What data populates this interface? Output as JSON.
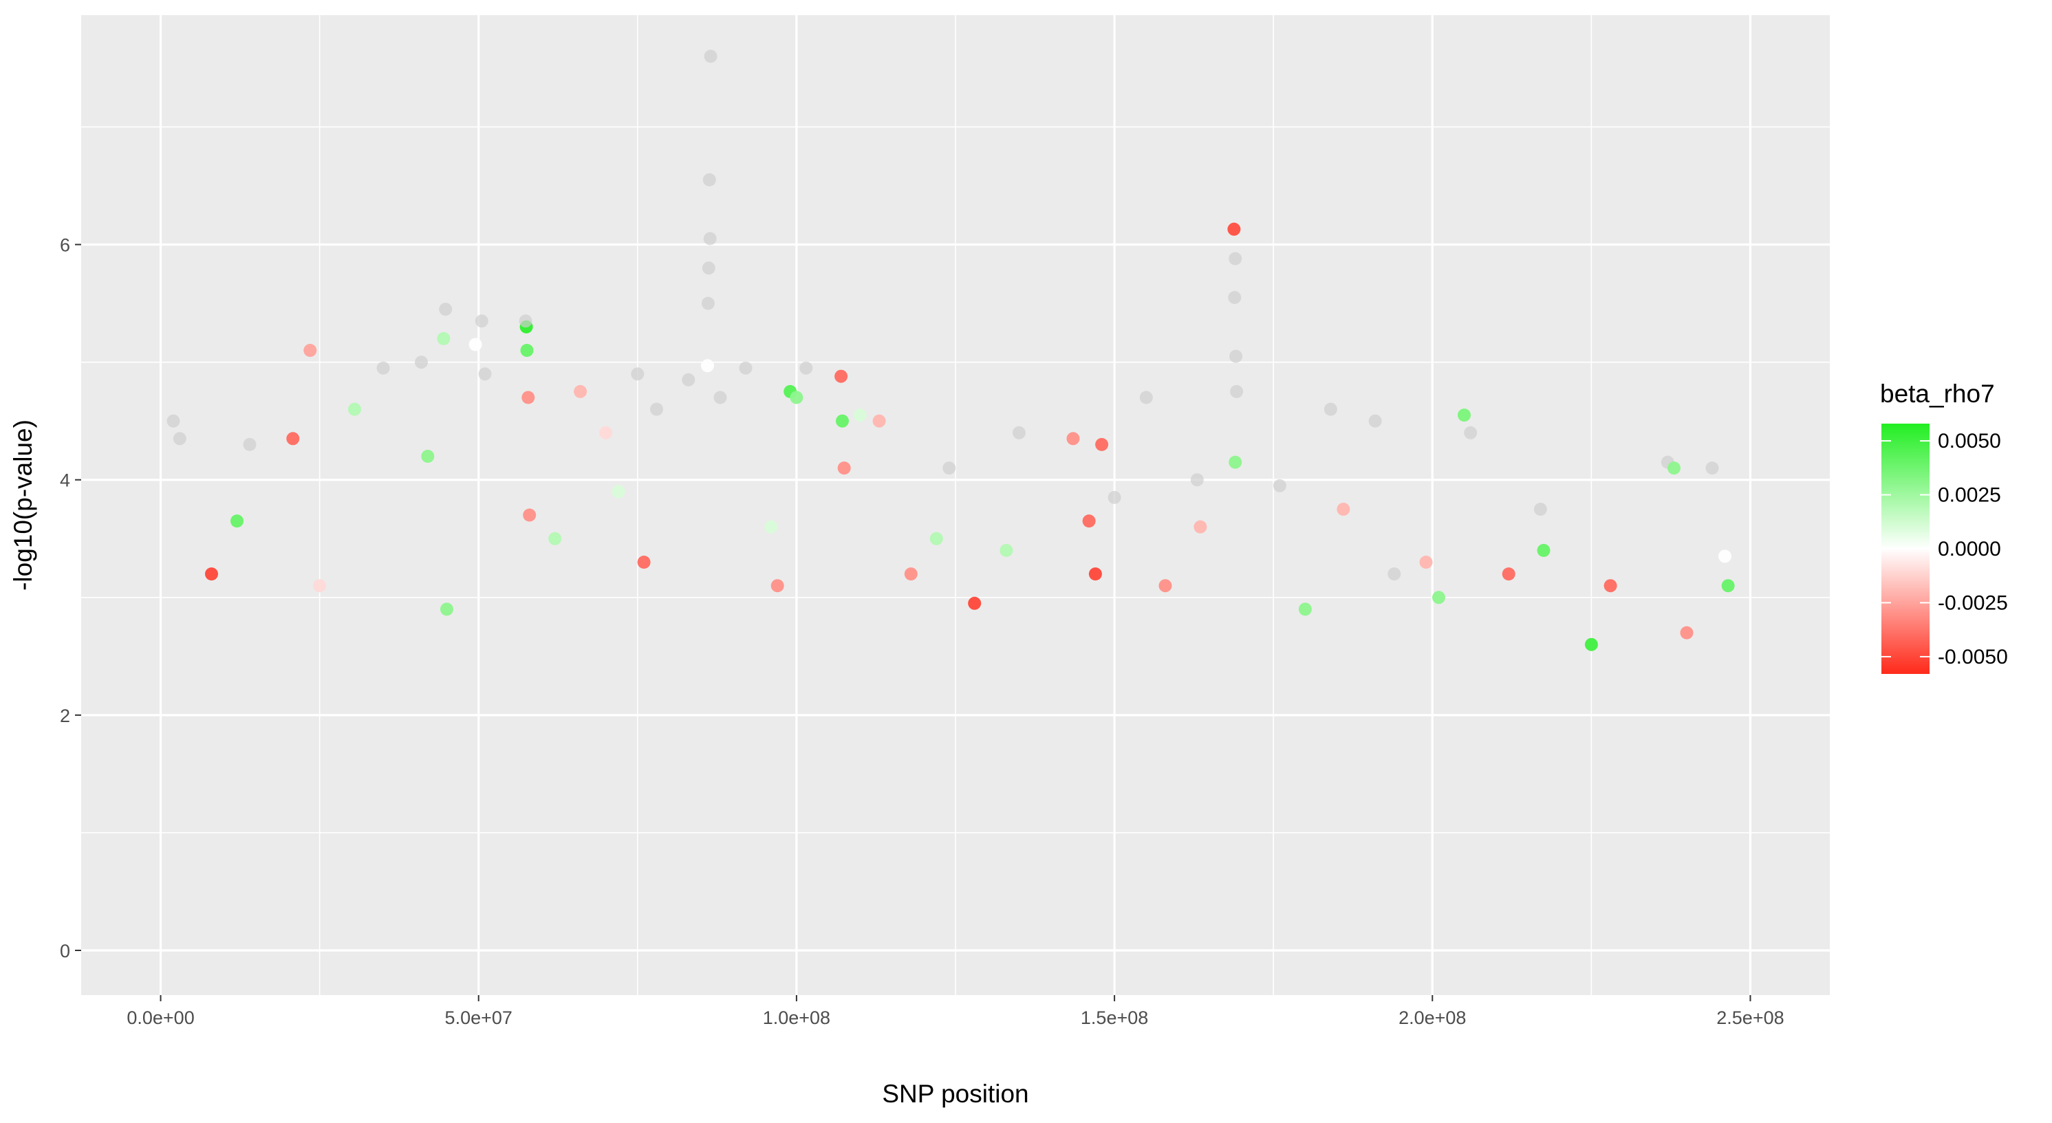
{
  "chart_data": {
    "type": "scatter",
    "title": "",
    "xlabel": "SNP position",
    "ylabel": "-log10(p-value)",
    "xlim": [
      -12500000,
      262500000
    ],
    "ylim": [
      -0.38,
      7.95
    ],
    "x_ticks": [
      {
        "value": 0,
        "label": "0.0e+00"
      },
      {
        "value": 50000000,
        "label": "5.0e+07"
      },
      {
        "value": 100000000,
        "label": "1.0e+08"
      },
      {
        "value": 150000000,
        "label": "1.5e+08"
      },
      {
        "value": 200000000,
        "label": "2.0e+08"
      },
      {
        "value": 250000000,
        "label": "2.5e+08"
      }
    ],
    "y_ticks": [
      {
        "value": 0,
        "label": "0"
      },
      {
        "value": 2,
        "label": "2"
      },
      {
        "value": 4,
        "label": "4"
      },
      {
        "value": 6,
        "label": "6"
      }
    ],
    "grid": true,
    "legend": {
      "title": "beta_rho7",
      "placement": "right",
      "type": "colorbar",
      "range": [
        -0.0058,
        0.0058
      ],
      "ticks": [
        {
          "value": 0.005,
          "label": "0.0050"
        },
        {
          "value": 0.0025,
          "label": "0.0025"
        },
        {
          "value": 0,
          "label": "0.0000"
        },
        {
          "value": -0.0025,
          "label": "-0.0025"
        },
        {
          "value": -0.005,
          "label": "-0.0050"
        }
      ],
      "colors": {
        "low": "#ff2a1a",
        "mid": "#ffffff",
        "high": "#22ee22",
        "na": "#cfcfcf"
      }
    },
    "colors": {
      "panel": "#ebebeb",
      "grid_major": "#ffffff",
      "background": "#ffffff"
    },
    "points": [
      [
        86500000,
        7.6,
        null
      ],
      [
        86300000,
        6.55,
        null
      ],
      [
        86400000,
        6.05,
        null
      ],
      [
        86200000,
        5.8,
        null
      ],
      [
        86100000,
        5.5,
        null
      ],
      [
        86000000,
        4.97,
        0.0
      ],
      [
        168800000,
        6.13,
        -0.0048
      ],
      [
        169000000,
        5.88,
        null
      ],
      [
        168900000,
        5.55,
        null
      ],
      [
        169100000,
        5.05,
        null
      ],
      [
        169200000,
        4.75,
        null
      ],
      [
        169000000,
        4.15,
        0.003
      ],
      [
        57500000,
        5.3,
        0.0055
      ],
      [
        57600000,
        5.1,
        0.004
      ],
      [
        57400000,
        5.35,
        null
      ],
      [
        23500000,
        5.1,
        -0.0025
      ],
      [
        20800000,
        4.35,
        -0.004
      ],
      [
        44800000,
        5.45,
        null
      ],
      [
        44500000,
        5.2,
        0.002
      ],
      [
        49500000,
        5.15,
        0.0
      ],
      [
        50500000,
        5.35,
        null
      ],
      [
        41000000,
        5.0,
        null
      ],
      [
        2000000,
        4.5,
        null
      ],
      [
        3000000,
        4.35,
        null
      ],
      [
        14000000,
        4.3,
        null
      ],
      [
        30500000,
        4.6,
        0.002
      ],
      [
        35000000,
        4.95,
        null
      ],
      [
        42000000,
        4.2,
        0.003
      ],
      [
        51000000,
        4.9,
        null
      ],
      [
        57800000,
        4.7,
        -0.003
      ],
      [
        66000000,
        4.75,
        -0.002
      ],
      [
        70000000,
        4.4,
        -0.001
      ],
      [
        75000000,
        4.9,
        null
      ],
      [
        78000000,
        4.6,
        null
      ],
      [
        83000000,
        4.85,
        null
      ],
      [
        88000000,
        4.7,
        null
      ],
      [
        92000000,
        4.95,
        null
      ],
      [
        99000000,
        4.75,
        0.0045
      ],
      [
        100000000,
        4.7,
        0.003
      ],
      [
        101500000,
        4.95,
        null
      ],
      [
        107000000,
        4.88,
        -0.004
      ],
      [
        107200000,
        4.5,
        0.004
      ],
      [
        107500000,
        4.1,
        -0.003
      ],
      [
        110000000,
        4.55,
        0.001
      ],
      [
        113000000,
        4.5,
        -0.002
      ],
      [
        124000000,
        4.1,
        null
      ],
      [
        135000000,
        4.4,
        null
      ],
      [
        143500000,
        4.35,
        -0.003
      ],
      [
        148000000,
        4.3,
        -0.004
      ],
      [
        150000000,
        3.85,
        null
      ],
      [
        155000000,
        4.7,
        null
      ],
      [
        163000000,
        4.0,
        null
      ],
      [
        176000000,
        3.95,
        null
      ],
      [
        184000000,
        4.6,
        null
      ],
      [
        186000000,
        3.75,
        -0.002
      ],
      [
        191000000,
        4.5,
        null
      ],
      [
        194000000,
        3.2,
        null
      ],
      [
        205000000,
        4.55,
        0.0035
      ],
      [
        206000000,
        4.4,
        null
      ],
      [
        217000000,
        3.75,
        null
      ],
      [
        217500000,
        3.4,
        0.004
      ],
      [
        228000000,
        3.1,
        -0.004
      ],
      [
        237000000,
        4.15,
        null
      ],
      [
        238000000,
        4.1,
        0.003
      ],
      [
        244000000,
        4.1,
        null
      ],
      [
        246000000,
        3.35,
        0.0
      ],
      [
        147000000,
        3.2,
        -0.005
      ],
      [
        146000000,
        3.65,
        -0.004
      ],
      [
        133000000,
        3.4,
        0.002
      ],
      [
        118000000,
        3.2,
        -0.003
      ],
      [
        122000000,
        3.5,
        0.002
      ],
      [
        128000000,
        2.95,
        -0.005
      ],
      [
        96000000,
        3.6,
        0.001
      ],
      [
        97000000,
        3.1,
        -0.003
      ],
      [
        76000000,
        3.3,
        -0.004
      ],
      [
        72000000,
        3.9,
        0.001
      ],
      [
        62000000,
        3.5,
        0.002
      ],
      [
        58000000,
        3.7,
        -0.003
      ],
      [
        12000000,
        3.65,
        0.004
      ],
      [
        8000000,
        3.2,
        -0.005
      ],
      [
        25000000,
        3.1,
        -0.001
      ],
      [
        45000000,
        2.9,
        0.003
      ],
      [
        212000000,
        3.2,
        -0.004
      ],
      [
        225000000,
        2.6,
        0.005
      ],
      [
        199000000,
        3.3,
        -0.002
      ],
      [
        201000000,
        3.0,
        0.003
      ],
      [
        158000000,
        3.1,
        -0.003
      ],
      [
        163500000,
        3.6,
        -0.002
      ],
      [
        180000000,
        2.9,
        0.003
      ],
      [
        240000000,
        2.7,
        -0.003
      ],
      [
        246500000,
        3.1,
        0.004
      ]
    ]
  }
}
